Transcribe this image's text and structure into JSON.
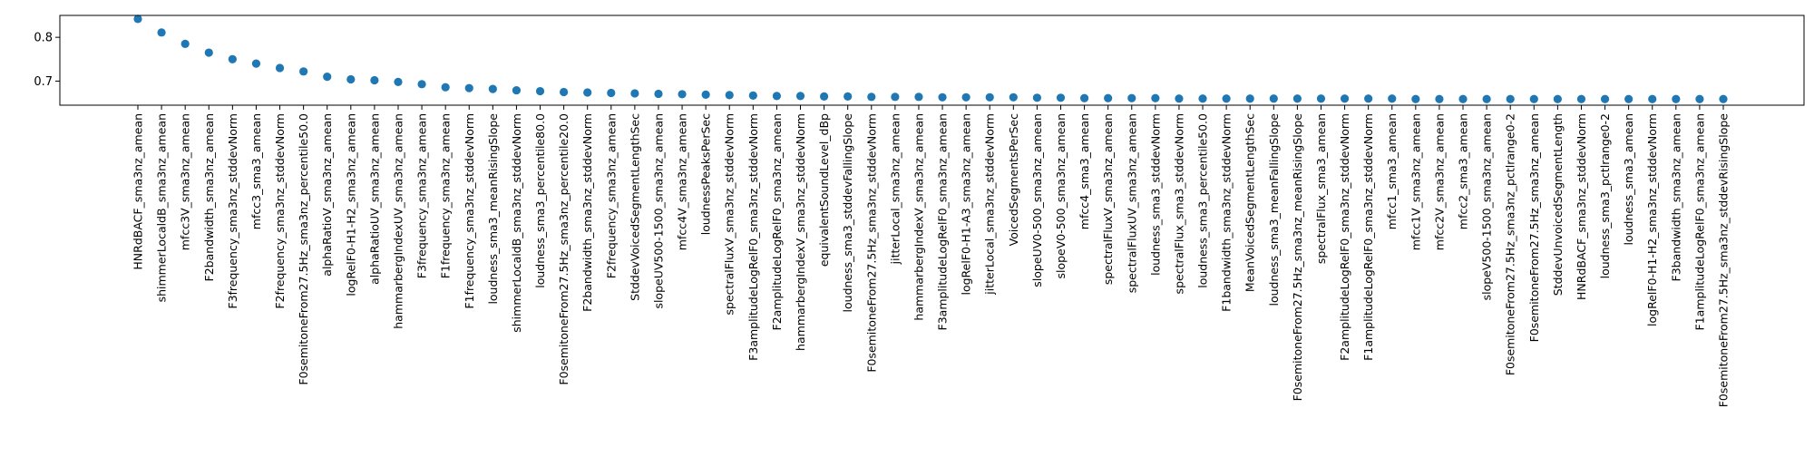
{
  "chart_data": {
    "type": "scatter",
    "title": "",
    "xlabel": "",
    "ylabel": "",
    "ylim": [
      0.645,
      0.85
    ],
    "yticks": [
      0.7,
      0.8
    ],
    "ytick_labels": [
      "0.7",
      "0.8"
    ],
    "grid": false,
    "legend": "none",
    "marker_color": "#1f77b4",
    "categories": [
      "HNRdBACF_sma3nz_amean",
      "shimmerLocaldB_sma3nz_amean",
      "mfcc3V_sma3nz_amean",
      "F2bandwidth_sma3nz_amean",
      "F3frequency_sma3nz_stddevNorm",
      "mfcc3_sma3_amean",
      "F2frequency_sma3nz_stddevNorm",
      "F0semitoneFrom27.5Hz_sma3nz_percentile50.0",
      "alphaRatioV_sma3nz_amean",
      "logRelF0-H1-H2_sma3nz_amean",
      "alphaRatioUV_sma3nz_amean",
      "hammarbergIndexUV_sma3nz_amean",
      "F3frequency_sma3nz_amean",
      "F1frequency_sma3nz_amean",
      "F1frequency_sma3nz_stddevNorm",
      "loudness_sma3_meanRisingSlope",
      "shimmerLocaldB_sma3nz_stddevNorm",
      "loudness_sma3_percentile80.0",
      "F0semitoneFrom27.5Hz_sma3nz_percentile20.0",
      "F2bandwidth_sma3nz_stddevNorm",
      "F2frequency_sma3nz_amean",
      "StddevVoicedSegmentLengthSec",
      "slopeUV500-1500_sma3nz_amean",
      "mfcc4V_sma3nz_amean",
      "loudnessPeaksPerSec",
      "spectralFluxV_sma3nz_stddevNorm",
      "F3amplitudeLogRelF0_sma3nz_stddevNorm",
      "F2amplitudeLogRelF0_sma3nz_amean",
      "hammarbergIndexV_sma3nz_stddevNorm",
      "equivalentSoundLevel_dBp",
      "loudness_sma3_stddevFallingSlope",
      "F0semitoneFrom27.5Hz_sma3nz_stddevNorm",
      "jitterLocal_sma3nz_amean",
      "hammarbergIndexV_sma3nz_amean",
      "F3amplitudeLogRelF0_sma3nz_amean",
      "logRelF0-H1-A3_sma3nz_amean",
      "jitterLocal_sma3nz_stddevNorm",
      "VoicedSegmentsPerSec",
      "slopeUV0-500_sma3nz_amean",
      "slopeV0-500_sma3nz_amean",
      "mfcc4_sma3_amean",
      "spectralFluxV_sma3nz_amean",
      "spectralFluxUV_sma3nz_amean",
      "loudness_sma3_stddevNorm",
      "spectralFlux_sma3_stddevNorm",
      "loudness_sma3_percentile50.0",
      "F1bandwidth_sma3nz_stddevNorm",
      "MeanVoicedSegmentLengthSec",
      "loudness_sma3_meanFallingSlope",
      "F0semitoneFrom27.5Hz_sma3nz_meanRisingSlope",
      "spectralFlux_sma3_amean",
      "F2amplitudeLogRelF0_sma3nz_stddevNorm",
      "F1amplitudeLogRelF0_sma3nz_stddevNorm",
      "mfcc1_sma3_amean",
      "mfcc1V_sma3nz_amean",
      "mfcc2V_sma3nz_amean",
      "mfcc2_sma3_amean",
      "slopeV500-1500_sma3nz_amean",
      "F0semitoneFrom27.5Hz_sma3nz_pctlrange0-2",
      "F0semitoneFrom27.5Hz_sma3nz_amean",
      "StddevUnvoicedSegmentLength",
      "HNRdBACF_sma3nz_stddevNorm",
      "loudness_sma3_pctlrange0-2",
      "loudness_sma3_amean",
      "logRelF0-H1-H2_sma3nz_stddevNorm",
      "F3bandwidth_sma3nz_amean",
      "F1amplitudeLogRelF0_sma3nz_amean",
      "F0semitoneFrom27.5Hz_sma3nz_stddevRisingSlope"
    ],
    "values": [
      0.842,
      0.811,
      0.785,
      0.765,
      0.75,
      0.74,
      0.73,
      0.722,
      0.71,
      0.704,
      0.702,
      0.698,
      0.693,
      0.686,
      0.684,
      0.682,
      0.679,
      0.677,
      0.675,
      0.674,
      0.673,
      0.672,
      0.671,
      0.67,
      0.669,
      0.668,
      0.667,
      0.666,
      0.666,
      0.665,
      0.665,
      0.664,
      0.664,
      0.664,
      0.663,
      0.663,
      0.663,
      0.663,
      0.662,
      0.662,
      0.661,
      0.661,
      0.661,
      0.661,
      0.66,
      0.66,
      0.66,
      0.66,
      0.66,
      0.66,
      0.66,
      0.66,
      0.66,
      0.66,
      0.659,
      0.659,
      0.659,
      0.659,
      0.659,
      0.659,
      0.659,
      0.659,
      0.659,
      0.659,
      0.659,
      0.659,
      0.659,
      0.659
    ]
  }
}
